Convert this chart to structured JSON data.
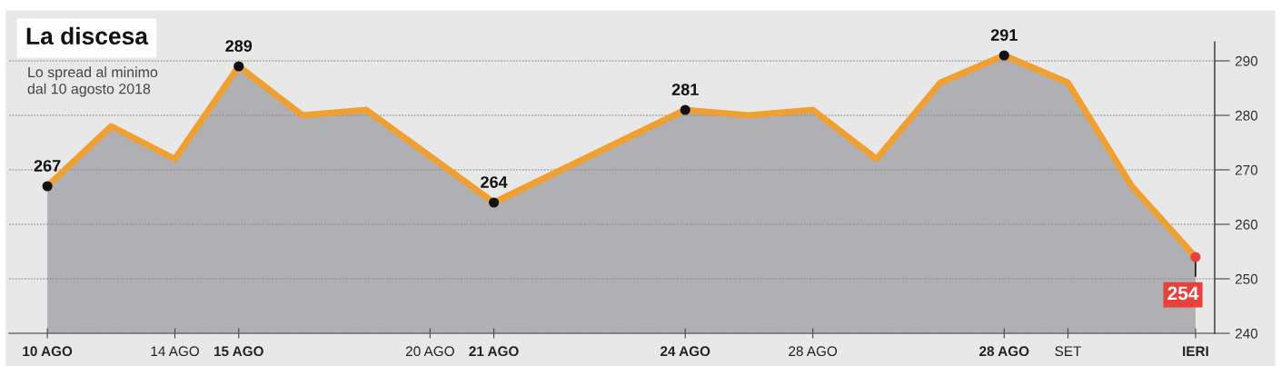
{
  "chart_data": {
    "type": "area",
    "title": "La discesa",
    "subtitle": "Lo spread al minimo\ndal 10 agosto 2018",
    "categories": [
      "10 AGO",
      null,
      "14 AGO",
      "15 AGO",
      null,
      null,
      "20 AGO",
      "21 AGO",
      null,
      null,
      "24 AGO",
      null,
      "28 AGO",
      null,
      null,
      "28 AGO",
      "SET",
      null,
      "IERI"
    ],
    "series": [
      {
        "color": "#f0a030",
        "values": [
          267,
          278,
          272,
          289,
          280,
          281,
          null,
          264,
          null,
          null,
          281,
          280,
          281,
          272,
          286,
          291,
          286,
          267,
          254
        ],
        "value_labels": [
          "267",
          null,
          null,
          "289",
          null,
          null,
          null,
          "264",
          null,
          null,
          "281",
          null,
          null,
          null,
          null,
          "291",
          null,
          null,
          "254"
        ]
      }
    ],
    "ylim": [
      240,
      293.5
    ],
    "yticks": [
      240,
      250,
      260,
      270,
      280,
      290
    ],
    "grid": "y",
    "line_style": "solid"
  }
}
